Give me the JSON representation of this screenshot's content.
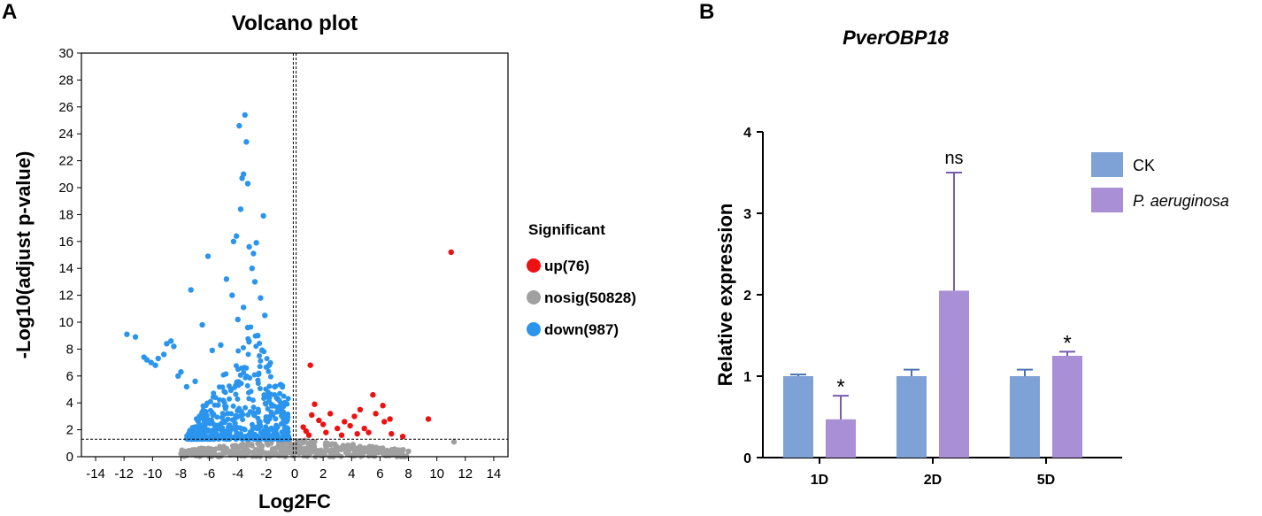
{
  "panels": {
    "a_label": "A",
    "b_label": "B"
  },
  "chart_data": [
    {
      "type": "scatter",
      "title": "Volcano plot",
      "xlabel": "Log2FC",
      "ylabel": "-Log10(adjust p-value)",
      "xlim": [
        -15,
        15
      ],
      "ylim": [
        0,
        30
      ],
      "xticks": [
        -14,
        -12,
        -10,
        -8,
        -6,
        -4,
        -2,
        0,
        2,
        4,
        6,
        8,
        10,
        12,
        14
      ],
      "yticks": [
        0,
        2,
        4,
        6,
        8,
        10,
        12,
        14,
        16,
        18,
        20,
        22,
        24,
        26,
        28,
        30
      ],
      "threshold_y": 1.3,
      "threshold_x": [
        -0.1,
        0.1
      ],
      "legend": {
        "title": "Significant",
        "position": "right",
        "items": [
          {
            "key": "up",
            "label": "up(76)",
            "color": "#ee1111"
          },
          {
            "key": "nosig",
            "label": "nosig(50828)",
            "color": "#a0a0a0"
          },
          {
            "key": "down",
            "label": "down(987)",
            "color": "#2b95ee"
          }
        ]
      },
      "series": [
        {
          "name": "down",
          "color": "#2b95ee",
          "points": [
            [
              -11.8,
              9.1
            ],
            [
              -11.2,
              8.9
            ],
            [
              -10.6,
              7.4
            ],
            [
              -10.4,
              7.2
            ],
            [
              -10.1,
              7.0
            ],
            [
              -9.8,
              6.8
            ],
            [
              -9.6,
              7.3
            ],
            [
              -9.2,
              7.6
            ],
            [
              -9.0,
              8.4
            ],
            [
              -8.7,
              8.6
            ],
            [
              -8.5,
              8.2
            ],
            [
              -8.2,
              6.0
            ],
            [
              -8.0,
              6.3
            ],
            [
              -7.6,
              5.2
            ],
            [
              -7.3,
              12.4
            ],
            [
              -7.0,
              5.6
            ],
            [
              -6.5,
              9.8
            ],
            [
              -6.1,
              14.9
            ],
            [
              -5.8,
              7.9
            ],
            [
              -5.2,
              8.3
            ],
            [
              -4.8,
              13.2
            ],
            [
              -4.3,
              16.0
            ],
            [
              -4.1,
              16.4
            ],
            [
              -4.4,
              12.0
            ],
            [
              -3.8,
              18.4
            ],
            [
              -3.9,
              24.6
            ],
            [
              -3.5,
              25.4
            ],
            [
              -3.4,
              23.4
            ],
            [
              -3.6,
              21.0
            ],
            [
              -3.3,
              20.3
            ],
            [
              -3.7,
              20.7
            ],
            [
              -3.2,
              15.6
            ],
            [
              -2.9,
              15.1
            ],
            [
              -2.7,
              15.9
            ],
            [
              -2.2,
              17.9
            ],
            [
              -3.0,
              14.0
            ],
            [
              -2.8,
              13.0
            ],
            [
              -3.6,
              11.1
            ],
            [
              -4.0,
              10.2
            ],
            [
              -3.3,
              9.6
            ],
            [
              -2.6,
              9.0
            ],
            [
              -2.4,
              11.8
            ],
            [
              -2.1,
              10.5
            ],
            [
              -1.8,
              6.8
            ],
            [
              -1.4,
              5.2
            ],
            [
              -1.2,
              4.3
            ],
            [
              -1.0,
              3.8
            ],
            [
              -0.8,
              3.3
            ],
            [
              -0.6,
              2.6
            ],
            [
              -0.5,
              2.1
            ]
          ]
        },
        {
          "name": "up",
          "color": "#ee1111",
          "points": [
            [
              11.0,
              15.2
            ],
            [
              9.4,
              2.8
            ],
            [
              7.6,
              1.5
            ],
            [
              6.7,
              2.8
            ],
            [
              6.2,
              3.8
            ],
            [
              5.5,
              4.6
            ],
            [
              5.7,
              3.2
            ],
            [
              6.3,
              2.6
            ],
            [
              4.6,
              3.5
            ],
            [
              4.2,
              3.0
            ],
            [
              3.9,
              2.3
            ],
            [
              4.9,
              2.1
            ],
            [
              3.5,
              2.6
            ],
            [
              3.0,
              2.1
            ],
            [
              1.1,
              6.8
            ],
            [
              1.4,
              3.9
            ],
            [
              1.2,
              3.1
            ],
            [
              1.7,
              2.7
            ],
            [
              0.6,
              2.2
            ],
            [
              0.8,
              1.9
            ],
            [
              2.0,
              2.4
            ],
            [
              2.5,
              3.2
            ],
            [
              2.2,
              1.8
            ],
            [
              1.0,
              1.6
            ],
            [
              5.2,
              1.8
            ],
            [
              4.4,
              1.7
            ],
            [
              6.8,
              1.7
            ],
            [
              3.3,
              1.6
            ]
          ]
        },
        {
          "name": "nosig",
          "color": "#a0a0a0",
          "points": [
            [
              -7.8,
              0.3
            ],
            [
              -7.2,
              0.5
            ],
            [
              -6.0,
              0.2
            ],
            [
              -5.0,
              0.4
            ],
            [
              -2.0,
              0.2
            ],
            [
              1.0,
              0.3
            ],
            [
              3.0,
              0.5
            ],
            [
              5.0,
              0.4
            ],
            [
              7.0,
              0.3
            ],
            [
              8.0,
              0.4
            ],
            [
              11.2,
              1.1
            ],
            [
              -1.0,
              0.6
            ],
            [
              0.3,
              0.8
            ],
            [
              2.2,
              1.0
            ],
            [
              4.1,
              0.9
            ],
            [
              6.0,
              0.6
            ]
          ]
        }
      ]
    },
    {
      "type": "bar",
      "title": "PverOBP18",
      "xlabel": "",
      "ylabel": "Relative expression",
      "ylim": [
        0,
        4
      ],
      "yticks": [
        0,
        1,
        2,
        3,
        4
      ],
      "categories": [
        "1D",
        "2D",
        "5D"
      ],
      "legend": {
        "position": "top-right"
      },
      "series": [
        {
          "name": "CK",
          "color": "#7ea1d6",
          "values": [
            1.0,
            1.0,
            1.0
          ],
          "errors": [
            0.02,
            0.08,
            0.08
          ]
        },
        {
          "name": "P. aeruginosa",
          "color": "#a98fd6",
          "values": [
            0.47,
            2.05,
            1.25
          ],
          "errors": [
            0.29,
            1.45,
            0.05
          ]
        }
      ],
      "annotations": [
        "*",
        "ns",
        "*"
      ]
    }
  ]
}
